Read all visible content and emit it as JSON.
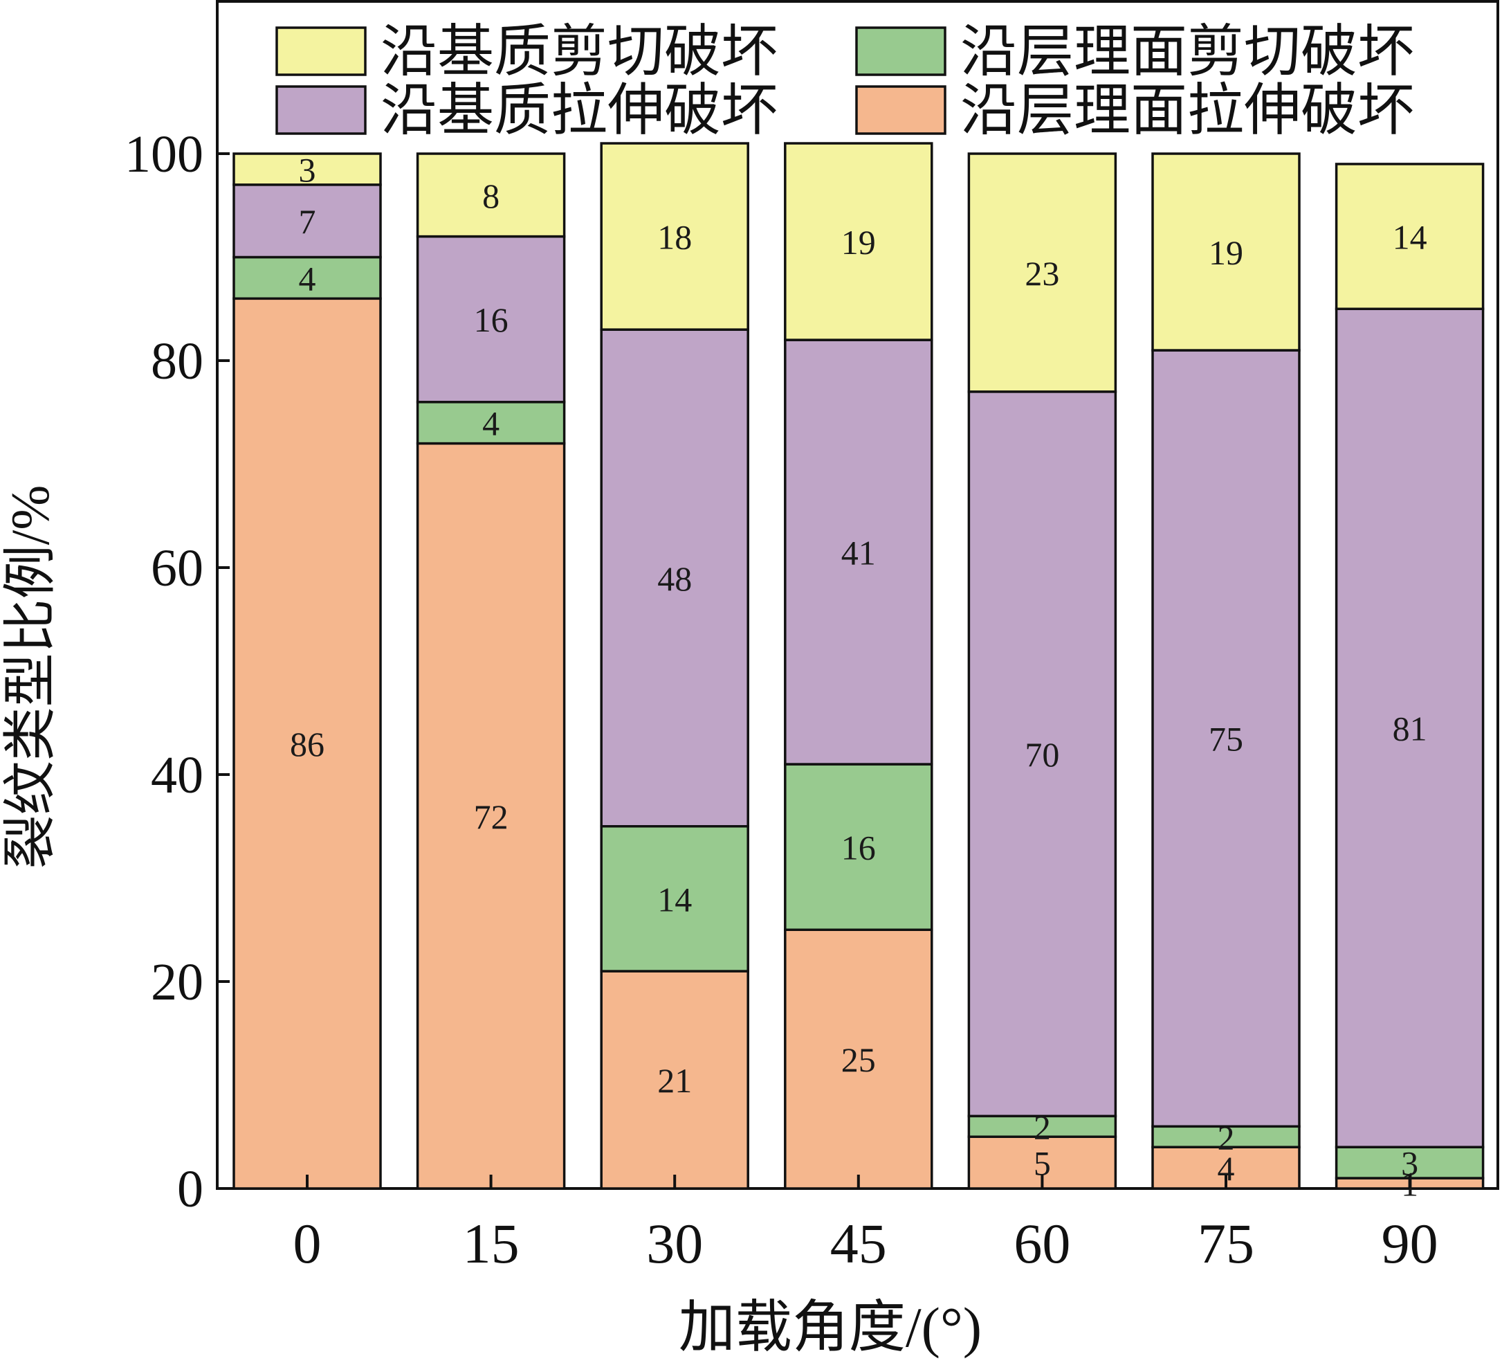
{
  "chart_data": {
    "type": "bar",
    "stacked": true,
    "xlabel": "加载角度/(°)",
    "ylabel": "裂纹类型比例/%",
    "ylim": [
      0,
      100
    ],
    "yticks": [
      "0",
      "20",
      "40",
      "60",
      "80",
      "100"
    ],
    "categories": [
      "0",
      "15",
      "30",
      "45",
      "60",
      "75",
      "90"
    ],
    "legend_position": "top",
    "series": [
      {
        "name": "沿层理面拉伸破坏",
        "color": "#F5B78E",
        "values": [
          86,
          72,
          21,
          25,
          5,
          4,
          1
        ]
      },
      {
        "name": "沿层理面剪切破坏",
        "color": "#98CA8F",
        "values": [
          4,
          4,
          14,
          16,
          2,
          2,
          3
        ]
      },
      {
        "name": "沿基质拉伸破坏",
        "color": "#BFA5C7",
        "values": [
          7,
          16,
          48,
          41,
          70,
          75,
          81
        ]
      },
      {
        "name": "沿基质剪切破坏",
        "color": "#F4F3A0",
        "values": [
          3,
          8,
          18,
          19,
          23,
          19,
          14
        ]
      }
    ],
    "legend_order": [
      3,
      1,
      2,
      0
    ]
  }
}
